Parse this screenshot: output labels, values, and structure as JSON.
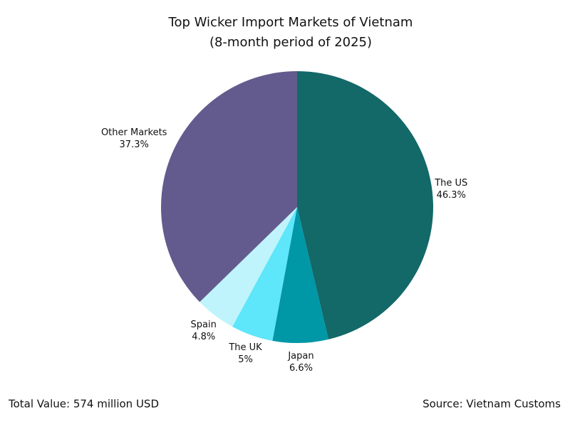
{
  "chart_data": {
    "type": "pie",
    "title": "Top Wicker Import Markets of Vietnam",
    "subtitle": "(8-month period of 2025)",
    "categories": [
      "The US",
      "Japan",
      "The UK",
      "Spain",
      "Other Markets"
    ],
    "values": [
      46.3,
      6.6,
      5,
      4.8,
      37.3
    ],
    "value_labels": [
      "46.3%",
      "6.6%",
      "5%",
      "4.8%",
      "37.3%"
    ],
    "colors": [
      "#136868",
      "#0097a7",
      "#5ee6fa",
      "#c0f4fc",
      "#635b8e"
    ],
    "notes": [
      "Total Value: 574 million USD",
      "Source: Vietnam Customs"
    ]
  }
}
